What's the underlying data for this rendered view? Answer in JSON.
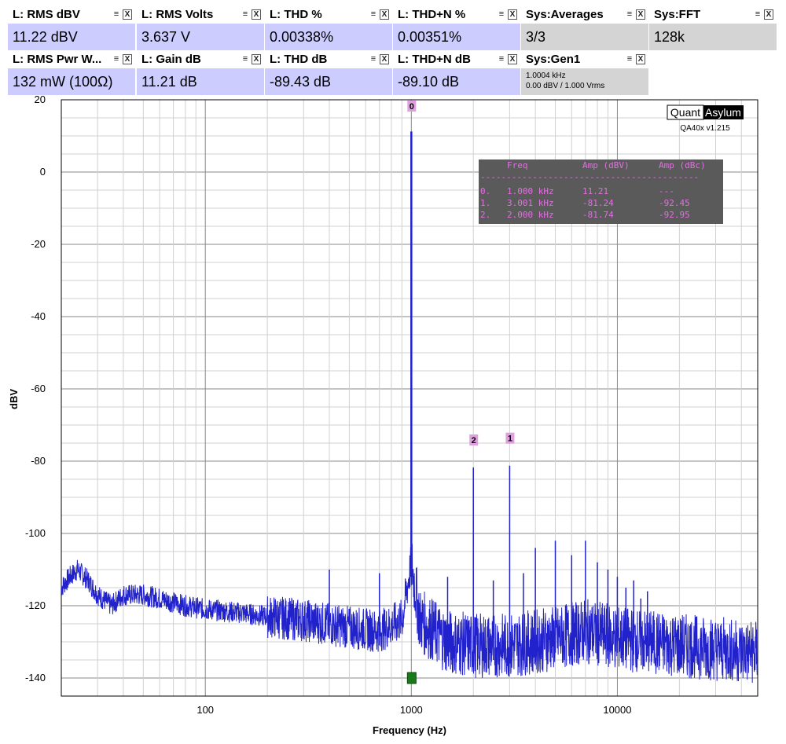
{
  "tiles_row1": [
    {
      "title": "L: RMS dBV",
      "value": "11.22 dBV",
      "gray": false
    },
    {
      "title": "L: RMS Volts",
      "value": "3.637 V",
      "gray": false
    },
    {
      "title": "L: THD %",
      "value": "0.00338%",
      "gray": false
    },
    {
      "title": "L: THD+N %",
      "value": "0.00351%",
      "gray": false
    },
    {
      "title": "Sys:Averages",
      "value": "3/3",
      "gray": true
    },
    {
      "title": "Sys:FFT",
      "value": "128k",
      "gray": true
    }
  ],
  "tiles_row2": [
    {
      "title": "L: RMS Pwr W...",
      "value": "132 mW (100Ω)",
      "gray": false
    },
    {
      "title": "L: Gain dB",
      "value": "11.21 dB",
      "gray": false
    },
    {
      "title": "L: THD dB",
      "value": "-89.43 dB",
      "gray": false
    },
    {
      "title": "L: THD+N dB",
      "value": "-89.10 dB",
      "gray": false
    }
  ],
  "gen_tile": {
    "title": "Sys:Gen1",
    "line1": "1.0004 kHz",
    "line2": "0.00 dBV  / 1.000 Vrms"
  },
  "tile_button_icons": {
    "menu": "menu-icon",
    "close": "close-icon"
  },
  "tile_button_glyphs": {
    "menu": "≡",
    "close": "X"
  },
  "logo": {
    "left": "Quant",
    "right": "Asylum",
    "version": "QA40x v1.215"
  },
  "harmonic_table": {
    "headers": [
      "Freq",
      "Amp (dBV)",
      "Amp (dBc)"
    ],
    "separator": "------------------------------------------",
    "rows": [
      {
        "idx": "0.",
        "freq": "1.000 kHz",
        "amp_dbv": "11.21",
        "amp_dbc": "---"
      },
      {
        "idx": "1.",
        "freq": "3.001 kHz",
        "amp_dbv": "-81.24",
        "amp_dbc": "-92.45"
      },
      {
        "idx": "2.",
        "freq": "2.000 kHz",
        "amp_dbv": "-81.74",
        "amp_dbc": "-92.95"
      }
    ]
  },
  "colors": {
    "trace": "#2222cc",
    "tile_value_bg": "#ccccff",
    "tile_gray_bg": "#d4d4d4",
    "marker": "#e0a0e0",
    "table_bg": "#5a5a5a",
    "table_text": "#e070e0",
    "cursor": "#1a7a1a"
  },
  "chart_data": {
    "type": "line",
    "xlabel": "Frequency (Hz)",
    "ylabel": "dBV",
    "xscale": "log",
    "xlim": [
      20,
      48000
    ],
    "ylim": [
      -145,
      20
    ],
    "y_ticks": [
      20,
      0,
      -20,
      -40,
      -60,
      -80,
      -100,
      -120,
      -140
    ],
    "x_tick_labels": [
      {
        "x": 100,
        "label": "100"
      },
      {
        "x": 1000,
        "label": "1000"
      },
      {
        "x": 10000,
        "label": "10000"
      }
    ],
    "grid": true,
    "peaks": [
      {
        "x": 1000,
        "y": 11.21,
        "marker": "0"
      },
      {
        "x": 3001,
        "y": -81.24,
        "marker": "1"
      },
      {
        "x": 2000,
        "y": -81.74,
        "marker": "2"
      },
      {
        "x": 4000,
        "y": -104
      },
      {
        "x": 5000,
        "y": -102
      },
      {
        "x": 6000,
        "y": -106
      },
      {
        "x": 7000,
        "y": -102
      },
      {
        "x": 8000,
        "y": -108
      },
      {
        "x": 9000,
        "y": -110
      },
      {
        "x": 10000,
        "y": -112
      },
      {
        "x": 11000,
        "y": -115
      },
      {
        "x": 12000,
        "y": -113
      },
      {
        "x": 13000,
        "y": -118
      },
      {
        "x": 14000,
        "y": -116
      },
      {
        "x": 400,
        "y": -110
      },
      {
        "x": 700,
        "y": -111
      },
      {
        "x": 1500,
        "y": -112
      },
      {
        "x": 2500,
        "y": -113
      },
      {
        "x": 3500,
        "y": -111
      }
    ],
    "noise_floor_points": [
      [
        20,
        -115
      ],
      [
        22,
        -112
      ],
      [
        24,
        -110
      ],
      [
        27,
        -113
      ],
      [
        30,
        -117
      ],
      [
        35,
        -120
      ],
      [
        40,
        -117
      ],
      [
        50,
        -117
      ],
      [
        60,
        -118
      ],
      [
        80,
        -120
      ],
      [
        100,
        -121
      ],
      [
        150,
        -122
      ],
      [
        200,
        -123
      ],
      [
        300,
        -124
      ],
      [
        500,
        -126
      ],
      [
        700,
        -127
      ],
      [
        900,
        -124
      ],
      [
        1000,
        -108
      ],
      [
        1100,
        -124
      ],
      [
        1500,
        -130
      ],
      [
        2000,
        -131
      ],
      [
        3000,
        -131
      ],
      [
        5000,
        -129
      ],
      [
        7000,
        -127
      ],
      [
        10000,
        -129
      ],
      [
        20000,
        -131
      ],
      [
        48000,
        -133
      ]
    ],
    "cursor": {
      "x": 1000,
      "y": -140
    }
  }
}
